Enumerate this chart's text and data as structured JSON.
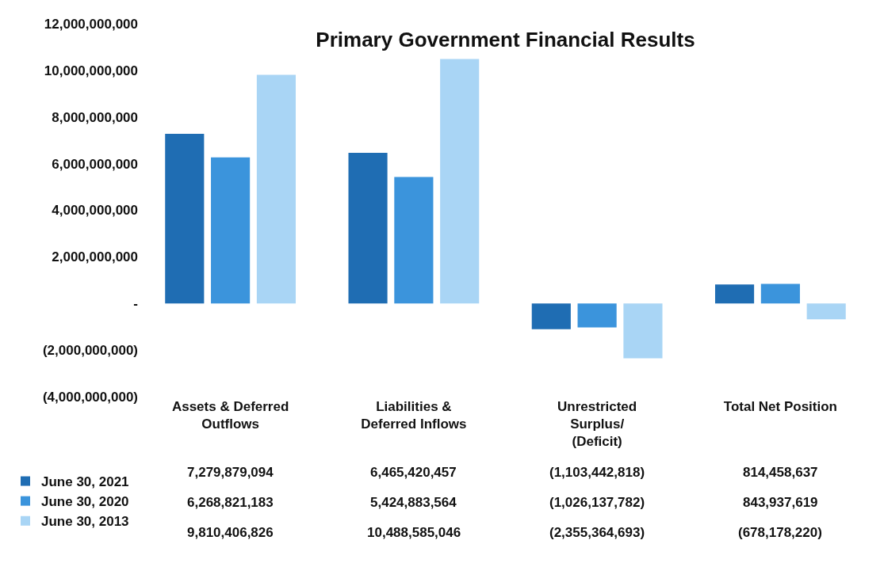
{
  "chart_data": {
    "type": "bar",
    "title": "Primary Government Financial Results",
    "categories": [
      "Assets & Deferred\nOutflows",
      "Liabilities &\nDeferred Inflows",
      "Unrestricted\nSurplus/\n(Deficit)",
      "Total Net Position"
    ],
    "series": [
      {
        "name": "June 30, 2021",
        "color": "#1f6db3",
        "values": [
          7279879094,
          6465420457,
          -1103442818,
          814458637
        ],
        "value_labels": [
          "7,279,879,094",
          "6,465,420,457",
          "(1,103,442,818)",
          "814,458,637"
        ]
      },
      {
        "name": "June 30, 2020",
        "color": "#3b94dc",
        "values": [
          6268821183,
          5424883564,
          -1026137782,
          843937619
        ],
        "value_labels": [
          "6,268,821,183",
          "5,424,883,564",
          "(1,026,137,782)",
          "843,937,619"
        ]
      },
      {
        "name": "June 30, 2013",
        "color": "#a9d5f5",
        "values": [
          9810406826,
          10488585046,
          -2355364693,
          -678178220
        ],
        "value_labels": [
          "9,810,406,826",
          "10,488,585,046",
          "(2,355,364,693)",
          "(678,178,220)"
        ]
      }
    ],
    "ylim": [
      -4000000000,
      12000000000
    ],
    "yticks": [
      {
        "value": -4000000000,
        "label": "(4,000,000,000)"
      },
      {
        "value": -2000000000,
        "label": "(2,000,000,000)"
      },
      {
        "value": 0,
        "label": "-"
      },
      {
        "value": 2000000000,
        "label": "2,000,000,000"
      },
      {
        "value": 4000000000,
        "label": "4,000,000,000"
      },
      {
        "value": 6000000000,
        "label": "6,000,000,000"
      },
      {
        "value": 8000000000,
        "label": "8,000,000,000"
      },
      {
        "value": 10000000000,
        "label": "10,000,000,000"
      },
      {
        "value": 12000000000,
        "label": "12,000,000,000"
      }
    ],
    "legend": "bottom left"
  }
}
